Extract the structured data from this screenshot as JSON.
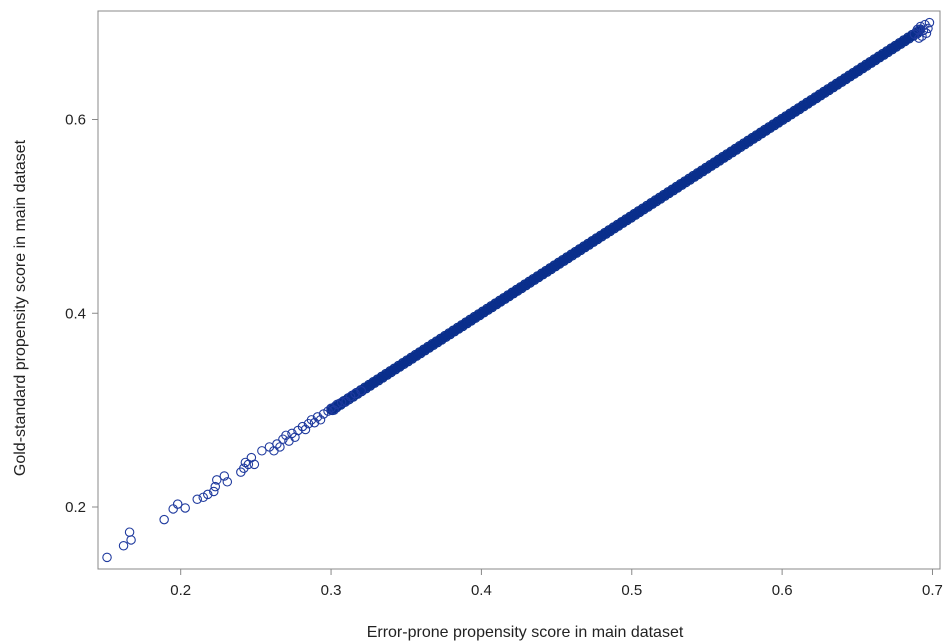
{
  "chart_data": {
    "type": "scatter",
    "xlabel": "Error-prone propensity score in main dataset",
    "ylabel": "Gold-standard propensity score in main dataset",
    "xlim": [
      0.145,
      0.705
    ],
    "ylim": [
      0.136,
      0.712
    ],
    "x_ticks": [
      0.2,
      0.3,
      0.4,
      0.5,
      0.6,
      0.7
    ],
    "x_tick_labels": [
      "0.2",
      "0.3",
      "0.4",
      "0.5",
      "0.6",
      "0.7"
    ],
    "y_ticks": [
      0.2,
      0.4,
      0.6
    ],
    "y_tick_labels": [
      "0.2",
      "0.4",
      "0.6"
    ],
    "grid": false,
    "marker": "open-circle",
    "colors": {
      "marker": "#1f3a9e",
      "dense_band": "#0a2f8c",
      "frame": "#888888",
      "text": "#222222"
    },
    "sparse_points": [
      [
        0.151,
        0.148
      ],
      [
        0.162,
        0.16
      ],
      [
        0.167,
        0.166
      ],
      [
        0.166,
        0.174
      ],
      [
        0.189,
        0.187
      ],
      [
        0.195,
        0.198
      ],
      [
        0.198,
        0.203
      ],
      [
        0.203,
        0.199
      ],
      [
        0.211,
        0.208
      ],
      [
        0.215,
        0.21
      ],
      [
        0.218,
        0.213
      ],
      [
        0.222,
        0.216
      ],
      [
        0.223,
        0.221
      ],
      [
        0.224,
        0.228
      ],
      [
        0.229,
        0.232
      ],
      [
        0.231,
        0.226
      ],
      [
        0.24,
        0.236
      ],
      [
        0.242,
        0.24
      ],
      [
        0.243,
        0.246
      ],
      [
        0.245,
        0.244
      ],
      [
        0.249,
        0.244
      ],
      [
        0.247,
        0.251
      ],
      [
        0.254,
        0.258
      ],
      [
        0.259,
        0.262
      ],
      [
        0.262,
        0.258
      ],
      [
        0.264,
        0.265
      ],
      [
        0.266,
        0.262
      ],
      [
        0.268,
        0.27
      ],
      [
        0.27,
        0.274
      ],
      [
        0.272,
        0.268
      ],
      [
        0.274,
        0.276
      ],
      [
        0.276,
        0.272
      ],
      [
        0.278,
        0.279
      ],
      [
        0.281,
        0.283
      ],
      [
        0.283,
        0.28
      ],
      [
        0.285,
        0.286
      ],
      [
        0.287,
        0.29
      ],
      [
        0.289,
        0.287
      ],
      [
        0.291,
        0.293
      ],
      [
        0.293,
        0.29
      ],
      [
        0.295,
        0.296
      ],
      [
        0.298,
        0.299
      ],
      [
        0.3,
        0.302
      ],
      [
        0.302,
        0.3
      ],
      [
        0.304,
        0.306
      ],
      [
        0.307,
        0.308
      ],
      [
        0.31,
        0.309
      ],
      [
        0.313,
        0.314
      ],
      [
        0.316,
        0.317
      ],
      [
        0.32,
        0.32
      ]
    ],
    "dense_band": {
      "x_start": 0.3,
      "x_end": 0.692,
      "slope": 1.0,
      "intercept": 0.0
    },
    "upper_points": [
      [
        0.688,
        0.688
      ],
      [
        0.69,
        0.693
      ],
      [
        0.692,
        0.696
      ],
      [
        0.694,
        0.692
      ],
      [
        0.695,
        0.698
      ],
      [
        0.697,
        0.694
      ],
      [
        0.698,
        0.7
      ],
      [
        0.696,
        0.689
      ],
      [
        0.693,
        0.686
      ],
      [
        0.691,
        0.684
      ]
    ]
  }
}
